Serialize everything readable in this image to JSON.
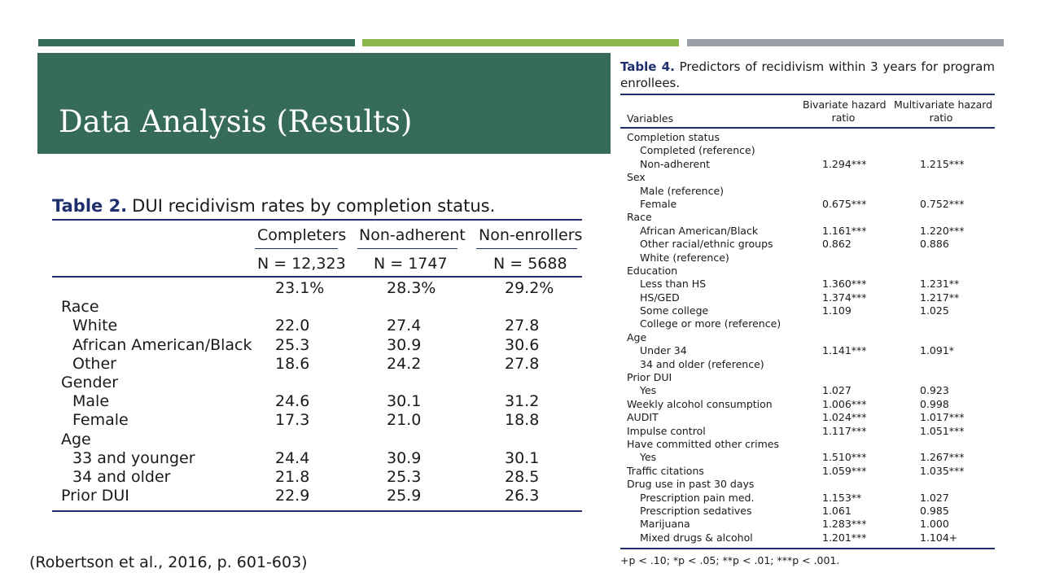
{
  "slide": {
    "title": "Data Analysis (Results)",
    "citation": "(Robertson et al., 2016, p. 601-603)"
  },
  "table2": {
    "caption_label": "Table 2.",
    "caption_text": "DUI recidivism rates by completion status.",
    "columns": [
      "Completers",
      "Non-adherent",
      "Non-enrollers"
    ],
    "n_values": [
      "N = 12,323",
      "N = 1747",
      "N = 5688"
    ],
    "rows": [
      {
        "label": "",
        "indent": false,
        "values": [
          "23.1%",
          "28.3%",
          "29.2%"
        ]
      },
      {
        "label": "Race",
        "indent": false,
        "values": [
          "",
          "",
          ""
        ]
      },
      {
        "label": "White",
        "indent": true,
        "values": [
          "22.0",
          "27.4",
          "27.8"
        ]
      },
      {
        "label": "African American/Black",
        "indent": true,
        "values": [
          "25.3",
          "30.9",
          "30.6"
        ]
      },
      {
        "label": "Other",
        "indent": true,
        "values": [
          "18.6",
          "24.2",
          "27.8"
        ]
      },
      {
        "label": "Gender",
        "indent": false,
        "values": [
          "",
          "",
          ""
        ]
      },
      {
        "label": "Male",
        "indent": true,
        "values": [
          "24.6",
          "30.1",
          "31.2"
        ]
      },
      {
        "label": "Female",
        "indent": true,
        "values": [
          "17.3",
          "21.0",
          "18.8"
        ]
      },
      {
        "label": "Age",
        "indent": false,
        "values": [
          "",
          "",
          ""
        ]
      },
      {
        "label": "33 and younger",
        "indent": true,
        "values": [
          "24.4",
          "30.9",
          "30.1"
        ]
      },
      {
        "label": "34 and older",
        "indent": true,
        "values": [
          "21.8",
          "25.3",
          "28.5"
        ]
      },
      {
        "label": "Prior DUI",
        "indent": false,
        "values": [
          "22.9",
          "25.9",
          "26.3"
        ]
      }
    ]
  },
  "table4": {
    "caption_label": "Table 4.",
    "caption_text": "Predictors of recidivism within 3 years for program enrollees.",
    "headers": {
      "variables": "Variables",
      "bivariate_line1": "Bivariate hazard",
      "bivariate_line2": "ratio",
      "multivariate_line1": "Multivariate hazard",
      "multivariate_line2": "ratio"
    },
    "rows": [
      {
        "label": "Completion status",
        "indent": false,
        "bivariate": "",
        "multivariate": ""
      },
      {
        "label": "Completed (reference)",
        "indent": true,
        "bivariate": "",
        "multivariate": ""
      },
      {
        "label": "Non-adherent",
        "indent": true,
        "bivariate": "1.294***",
        "multivariate": "1.215***"
      },
      {
        "label": "Sex",
        "indent": false,
        "bivariate": "",
        "multivariate": ""
      },
      {
        "label": "Male (reference)",
        "indent": true,
        "bivariate": "",
        "multivariate": ""
      },
      {
        "label": "Female",
        "indent": true,
        "bivariate": "0.675***",
        "multivariate": "0.752***"
      },
      {
        "label": "Race",
        "indent": false,
        "bivariate": "",
        "multivariate": ""
      },
      {
        "label": "African American/Black",
        "indent": true,
        "bivariate": "1.161***",
        "multivariate": "1.220***"
      },
      {
        "label": "Other racial/ethnic groups",
        "indent": true,
        "bivariate": "0.862",
        "multivariate": "0.886"
      },
      {
        "label": "White (reference)",
        "indent": true,
        "bivariate": "",
        "multivariate": ""
      },
      {
        "label": "Education",
        "indent": false,
        "bivariate": "",
        "multivariate": ""
      },
      {
        "label": "Less than HS",
        "indent": true,
        "bivariate": "1.360***",
        "multivariate": "1.231**"
      },
      {
        "label": "HS/GED",
        "indent": true,
        "bivariate": "1.374***",
        "multivariate": "1.217**"
      },
      {
        "label": "Some college",
        "indent": true,
        "bivariate": "1.109",
        "multivariate": "1.025"
      },
      {
        "label": "College or more (reference)",
        "indent": true,
        "bivariate": "",
        "multivariate": ""
      },
      {
        "label": "Age",
        "indent": false,
        "bivariate": "",
        "multivariate": ""
      },
      {
        "label": "Under 34",
        "indent": true,
        "bivariate": "1.141***",
        "multivariate": "1.091*"
      },
      {
        "label": "34 and older (reference)",
        "indent": true,
        "bivariate": "",
        "multivariate": ""
      },
      {
        "label": "Prior DUI",
        "indent": false,
        "bivariate": "",
        "multivariate": ""
      },
      {
        "label": "Yes",
        "indent": true,
        "bivariate": "1.027",
        "multivariate": "0.923"
      },
      {
        "label": "Weekly alcohol consumption",
        "indent": false,
        "bivariate": "1.006***",
        "multivariate": "0.998"
      },
      {
        "label": "AUDIT",
        "indent": false,
        "bivariate": "1.024***",
        "multivariate": "1.017***"
      },
      {
        "label": "Impulse control",
        "indent": false,
        "bivariate": "1.117***",
        "multivariate": "1.051***"
      },
      {
        "label": "Have committed other crimes",
        "indent": false,
        "bivariate": "",
        "multivariate": ""
      },
      {
        "label": "Yes",
        "indent": true,
        "bivariate": "1.510***",
        "multivariate": "1.267***"
      },
      {
        "label": "Traffic citations",
        "indent": false,
        "bivariate": "1.059***",
        "multivariate": "1.035***"
      },
      {
        "label": "Drug use in past 30 days",
        "indent": false,
        "bivariate": "",
        "multivariate": ""
      },
      {
        "label": "Prescription pain med.",
        "indent": true,
        "bivariate": "1.153**",
        "multivariate": "1.027"
      },
      {
        "label": "Prescription sedatives",
        "indent": true,
        "bivariate": "1.061",
        "multivariate": "0.985"
      },
      {
        "label": "Marijuana",
        "indent": true,
        "bivariate": "1.283***",
        "multivariate": "1.000"
      },
      {
        "label": "Mixed drugs & alcohol",
        "indent": true,
        "bivariate": "1.201***",
        "multivariate": "1.104+"
      }
    ],
    "footnote": "+p < .10; *p < .05; **p < .01; ***p < .001."
  }
}
